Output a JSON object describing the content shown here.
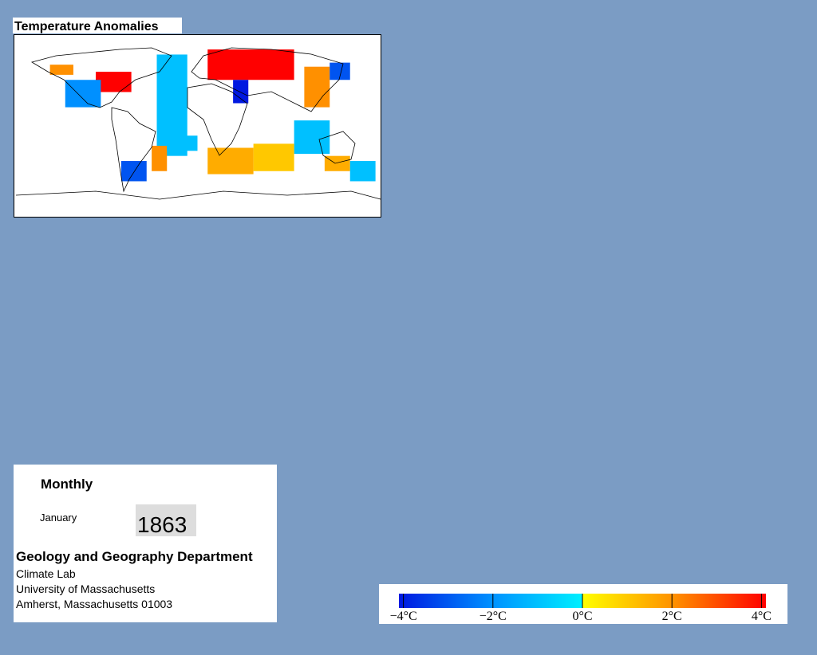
{
  "map": {
    "title": "Temperature Anomalies",
    "cells": [
      {
        "lon1": -145,
        "lon2": -122,
        "lat1": 60,
        "lat2": 50,
        "value": 2
      },
      {
        "lon1": -100,
        "lon2": -65,
        "lat1": 53,
        "lat2": 33,
        "value": 4
      },
      {
        "lon1": -130,
        "lon2": -95,
        "lat1": 45,
        "lat2": 18,
        "value": -2
      },
      {
        "lon1": -40,
        "lon2": -10,
        "lat1": 70,
        "lat2": -30,
        "value": -1
      },
      {
        "lon1": 10,
        "lon2": 95,
        "lat1": 75,
        "lat2": 45,
        "value": 4
      },
      {
        "lon1": 35,
        "lon2": 50,
        "lat1": 45,
        "lat2": 22,
        "value": -4
      },
      {
        "lon1": 105,
        "lon2": 130,
        "lat1": 58,
        "lat2": 18,
        "value": 2
      },
      {
        "lon1": 130,
        "lon2": 150,
        "lat1": 62,
        "lat2": 45,
        "value": -3
      },
      {
        "lon1": 95,
        "lon2": 130,
        "lat1": 5,
        "lat2": -28,
        "value": -1
      },
      {
        "lon1": 10,
        "lon2": 55,
        "lat1": -22,
        "lat2": -48,
        "value": 1.5
      },
      {
        "lon1": 55,
        "lon2": 95,
        "lat1": -18,
        "lat2": -45,
        "value": 1
      },
      {
        "lon1": 125,
        "lon2": 150,
        "lat1": -30,
        "lat2": -45,
        "value": 1.5
      },
      {
        "lon1": 150,
        "lon2": 175,
        "lat1": -35,
        "lat2": -55,
        "value": -1
      },
      {
        "lon1": -75,
        "lon2": -50,
        "lat1": -35,
        "lat2": -55,
        "value": -3
      },
      {
        "lon1": -45,
        "lon2": -30,
        "lat1": -20,
        "lat2": -45,
        "value": 2
      },
      {
        "lon1": -30,
        "lon2": 0,
        "lat1": -10,
        "lat2": -25,
        "value": -1
      }
    ]
  },
  "info": {
    "period": "Monthly",
    "month": "January",
    "year": "1863",
    "department": "Geology and Geography Department",
    "lines": [
      "Climate Lab",
      "University of Massachusetts",
      "Amherst, Massachusetts 01003"
    ]
  },
  "colorbar": {
    "lim": [
      -4.1,
      4.1
    ],
    "ticks": [
      {
        "value": -4,
        "label": "−4°C"
      },
      {
        "value": -2,
        "label": "−2°C"
      },
      {
        "value": 0,
        "label": "0°C"
      },
      {
        "value": 2,
        "label": "2°C"
      },
      {
        "value": 4,
        "label": "4°C"
      }
    ]
  }
}
